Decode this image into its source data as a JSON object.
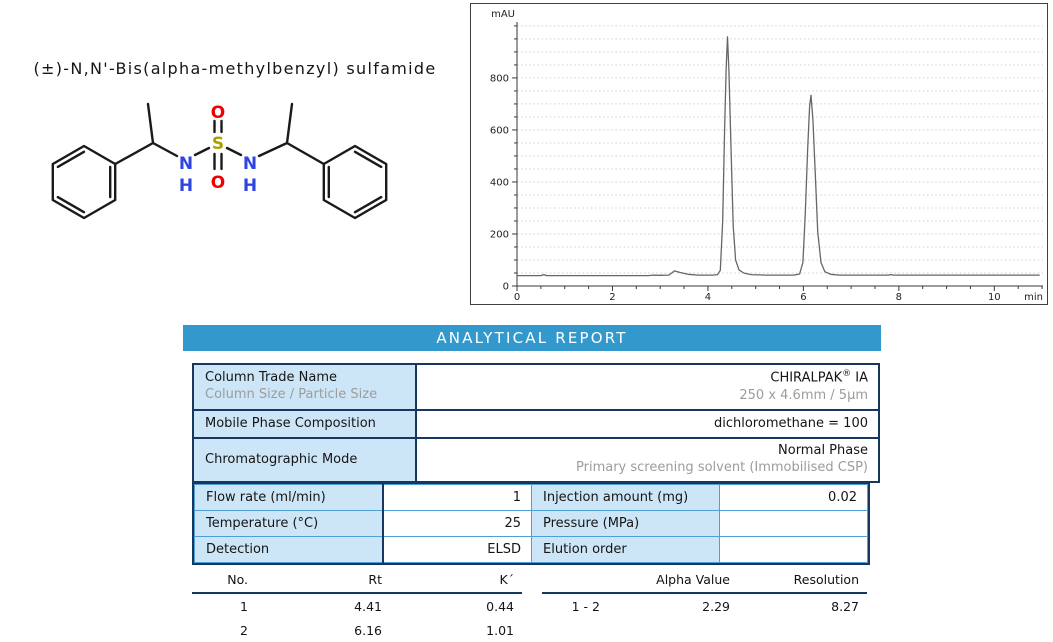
{
  "colors": {
    "accent": "#3399CC",
    "cell_blue": "#CDE6F7",
    "border_navy": "#17375E",
    "grid_blue": "#4D9FD6",
    "nitrogen": "#2E45E0",
    "sulfur": "#ABA000",
    "oxygen": "#EE0000",
    "bond": "#1A1A1A",
    "trace": "#666666"
  },
  "molecule": {
    "title": "(±)-N,N'-Bis(alpha-methylbenzyl) sulfamide",
    "atoms": {
      "n1": "N",
      "h1": "H",
      "s": "S",
      "o_top": "O",
      "o_bottom": "O",
      "n2": "N",
      "h2": "H"
    }
  },
  "report": {
    "title": "ANALYTICAL REPORT"
  },
  "info_table": {
    "rows": [
      {
        "label": "Column Trade Name",
        "sublabel": "Column Size / Particle Size",
        "value_main": "CHIRALPAK",
        "value_sup": "®",
        "value_tail": " IA",
        "subvalue": "250 x 4.6mm / 5µm"
      },
      {
        "label": "Mobile Phase Composition",
        "value": "dichloromethane = 100"
      },
      {
        "label": "Chromatographic Mode",
        "value": "Normal Phase",
        "subvalue": "Primary screening solvent (Immobilised CSP)"
      }
    ]
  },
  "param_table": {
    "rows": [
      [
        "Flow rate (ml/min)",
        "1",
        "Injection amount (mg)",
        "0.02"
      ],
      [
        "Temperature (°C)",
        "25",
        "Pressure (MPa)",
        ""
      ],
      [
        "Detection",
        "ELSD",
        "Elution order",
        ""
      ]
    ]
  },
  "peaks_table": {
    "headers": [
      "No.",
      "Rt",
      "K´"
    ],
    "rows": [
      [
        "1",
        "4.41",
        "0.44"
      ],
      [
        "2",
        "6.16",
        "1.01"
      ]
    ]
  },
  "separation_table": {
    "headers": [
      "",
      "Alpha Value",
      "Resolution"
    ],
    "rows": [
      [
        "1 - 2",
        "2.29",
        "8.27"
      ]
    ]
  },
  "chart_data": {
    "type": "line",
    "ylabel": "mAU",
    "xlabel": "min",
    "xlim": [
      0,
      11.02
    ],
    "ylim": [
      0,
      1015
    ],
    "x_ticks_major": [
      0,
      2,
      4,
      6,
      8,
      10
    ],
    "y_ticks_major": [
      0,
      200,
      400,
      600,
      800
    ],
    "x_minor_step": 0.5,
    "y_minor_step": 50,
    "grid": "horizontal-dotted",
    "legend": "none",
    "baseline_mau": 40,
    "peaks": [
      {
        "no": 1,
        "rt_min": 4.41,
        "apex_mau": 958
      },
      {
        "no": 2,
        "rt_min": 6.16,
        "apex_mau": 733
      }
    ],
    "trace": [
      [
        0,
        40
      ],
      [
        0.5,
        40
      ],
      [
        0.56,
        44
      ],
      [
        0.62,
        40
      ],
      [
        1.5,
        40
      ],
      [
        2.75,
        40
      ],
      [
        2.85,
        42
      ],
      [
        3.0,
        41
      ],
      [
        3.18,
        42
      ],
      [
        3.3,
        58
      ],
      [
        3.42,
        52
      ],
      [
        3.58,
        45
      ],
      [
        3.8,
        42
      ],
      [
        4.1,
        42
      ],
      [
        4.2,
        44
      ],
      [
        4.26,
        60
      ],
      [
        4.31,
        250
      ],
      [
        4.35,
        600
      ],
      [
        4.38,
        830
      ],
      [
        4.41,
        958
      ],
      [
        4.44,
        830
      ],
      [
        4.48,
        560
      ],
      [
        4.53,
        230
      ],
      [
        4.58,
        100
      ],
      [
        4.65,
        62
      ],
      [
        4.75,
        50
      ],
      [
        4.9,
        44
      ],
      [
        5.2,
        42
      ],
      [
        5.8,
        42
      ],
      [
        5.92,
        46
      ],
      [
        5.99,
        90
      ],
      [
        6.04,
        280
      ],
      [
        6.09,
        530
      ],
      [
        6.13,
        690
      ],
      [
        6.16,
        733
      ],
      [
        6.2,
        640
      ],
      [
        6.25,
        430
      ],
      [
        6.3,
        210
      ],
      [
        6.37,
        90
      ],
      [
        6.45,
        55
      ],
      [
        6.57,
        45
      ],
      [
        6.75,
        42
      ],
      [
        7.78,
        42
      ],
      [
        7.83,
        44
      ],
      [
        7.88,
        42
      ],
      [
        9.0,
        42
      ],
      [
        10.95,
        42
      ]
    ]
  }
}
